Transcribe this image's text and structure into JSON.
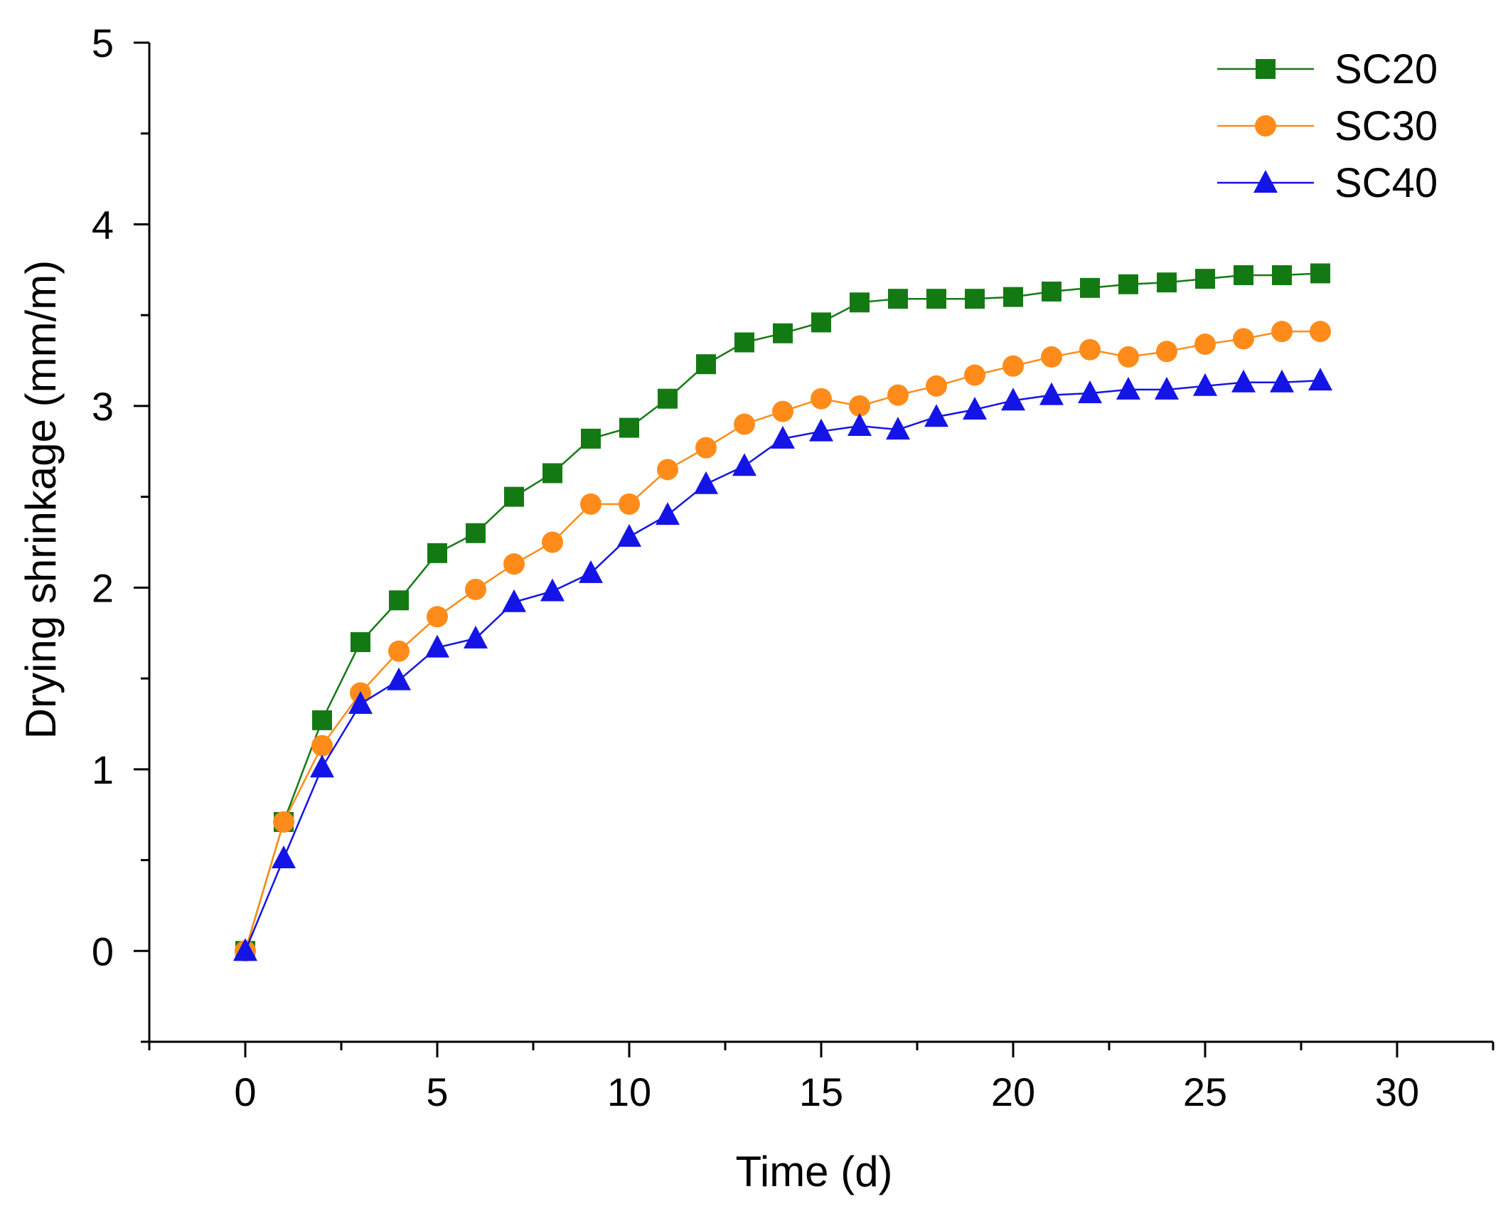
{
  "chart_data": {
    "type": "line",
    "title": "",
    "xlabel": "Time (d)",
    "ylabel": "Drying shrinkage (mm/m)",
    "xlim": [
      -2.5,
      32.5
    ],
    "ylim": [
      -0.5,
      5
    ],
    "x_major_ticks": [
      0,
      5,
      10,
      15,
      20,
      25,
      30
    ],
    "x_minor_ticks": [
      -2.5,
      2.5,
      7.5,
      12.5,
      17.5,
      22.5,
      27.5,
      32.5
    ],
    "y_major_ticks": [
      0,
      1,
      2,
      3,
      4,
      5
    ],
    "y_minor_ticks": [
      -0.5,
      0.5,
      1.5,
      2.5,
      3.5,
      4.5
    ],
    "x_tick_labels": [
      "0",
      "5",
      "10",
      "15",
      "20",
      "25",
      "30"
    ],
    "y_tick_labels": [
      "0",
      "1",
      "2",
      "3",
      "4",
      "5"
    ],
    "grid": false,
    "legend_position": "top-right",
    "x": [
      0,
      1,
      2,
      3,
      4,
      5,
      6,
      7,
      8,
      9,
      10,
      11,
      12,
      13,
      14,
      15,
      16,
      17,
      18,
      19,
      20,
      21,
      22,
      23,
      24,
      25,
      26,
      27,
      28
    ],
    "series": [
      {
        "name": "SC20",
        "marker": "square",
        "color": "#137a13",
        "values": [
          0,
          0.71,
          1.27,
          1.7,
          1.93,
          2.19,
          2.3,
          2.5,
          2.63,
          2.82,
          2.88,
          3.04,
          3.23,
          3.35,
          3.4,
          3.46,
          3.57,
          3.59,
          3.59,
          3.59,
          3.6,
          3.63,
          3.65,
          3.67,
          3.68,
          3.7,
          3.72,
          3.72,
          3.73
        ]
      },
      {
        "name": "SC30",
        "marker": "circle",
        "color": "#ff8c1a",
        "values": [
          0,
          0.71,
          1.13,
          1.42,
          1.65,
          1.84,
          1.99,
          2.13,
          2.25,
          2.46,
          2.46,
          2.65,
          2.77,
          2.9,
          2.97,
          3.04,
          3.0,
          3.06,
          3.11,
          3.17,
          3.22,
          3.27,
          3.31,
          3.27,
          3.3,
          3.34,
          3.37,
          3.41,
          3.41
        ]
      },
      {
        "name": "SC40",
        "marker": "triangle",
        "color": "#1414e6",
        "values": [
          0,
          0.51,
          1.01,
          1.36,
          1.49,
          1.67,
          1.72,
          1.92,
          1.98,
          2.08,
          2.28,
          2.4,
          2.57,
          2.67,
          2.82,
          2.86,
          2.89,
          2.87,
          2.94,
          2.98,
          3.03,
          3.06,
          3.07,
          3.09,
          3.09,
          3.11,
          3.13,
          3.13,
          3.14
        ]
      }
    ]
  }
}
